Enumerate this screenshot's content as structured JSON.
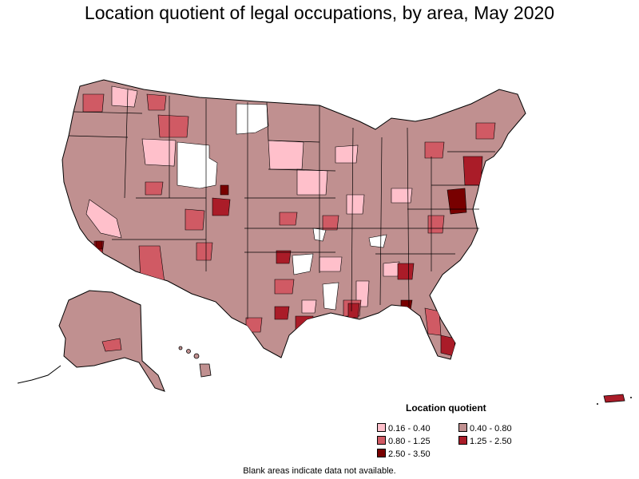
{
  "title": "Location quotient of legal occupations, by area, May 2020",
  "legend": {
    "title": "Location quotient",
    "items": [
      {
        "label": "0.16 - 0.40",
        "color": "#ffc0cb"
      },
      {
        "label": "0.40 - 0.80",
        "color": "#c09090"
      },
      {
        "label": "0.80 - 1.25",
        "color": "#d05a64"
      },
      {
        "label": "1.25 - 2.50",
        "color": "#aa1c28"
      },
      {
        "label": "2.50 - 3.50",
        "color": "#780000"
      }
    ]
  },
  "footnote": "Blank areas indicate data not available.",
  "map": {
    "regions": [
      "contiguous-us",
      "alaska",
      "hawaii",
      "puerto-rico"
    ],
    "border_color": "#000000",
    "no_data_color": "#ffffff"
  }
}
